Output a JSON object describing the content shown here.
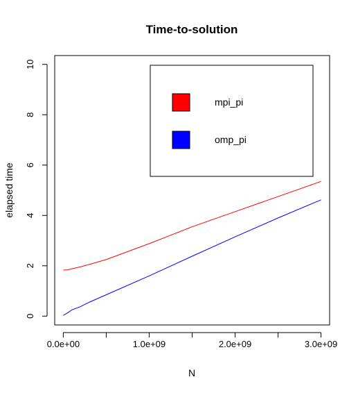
{
  "chart_data": {
    "type": "line",
    "title": "Time-to-solution",
    "xlabel": "N",
    "ylabel": "elapsed time",
    "xlim": [
      -100000000,
      3100000000
    ],
    "ylim": [
      -0.35,
      10.35
    ],
    "x_ticks": [
      {
        "value": 0,
        "label": "0.0e+00"
      },
      {
        "value": 500000000,
        "label": ""
      },
      {
        "value": 1000000000,
        "label": "1.0e+09"
      },
      {
        "value": 1500000000,
        "label": ""
      },
      {
        "value": 2000000000,
        "label": "2.0e+09"
      },
      {
        "value": 2500000000,
        "label": ""
      },
      {
        "value": 3000000000,
        "label": "3.0e+09"
      }
    ],
    "y_ticks": [
      {
        "value": 0,
        "label": "0"
      },
      {
        "value": 2,
        "label": "2"
      },
      {
        "value": 4,
        "label": "4"
      },
      {
        "value": 6,
        "label": "6"
      },
      {
        "value": 8,
        "label": "8"
      },
      {
        "value": 10,
        "label": "10"
      }
    ],
    "grid": false,
    "legend_position": "top-right",
    "series": [
      {
        "name": "mpi_pi",
        "color": "#ff0000",
        "x": [
          0,
          50000000,
          100000000,
          200000000,
          300000000,
          500000000,
          1000000000,
          1500000000,
          2000000000,
          2500000000,
          3000000000
        ],
        "y": [
          1.83,
          1.84,
          1.88,
          1.96,
          2.05,
          2.25,
          2.88,
          3.55,
          4.15,
          4.75,
          5.35
        ]
      },
      {
        "name": "omp_pi",
        "color": "#0000ff",
        "x": [
          0,
          50000000,
          100000000,
          200000000,
          300000000,
          500000000,
          1000000000,
          1500000000,
          2000000000,
          2500000000,
          3000000000
        ],
        "y": [
          0.03,
          0.13,
          0.25,
          0.38,
          0.55,
          0.85,
          1.6,
          2.38,
          3.15,
          3.9,
          4.62
        ]
      }
    ]
  }
}
